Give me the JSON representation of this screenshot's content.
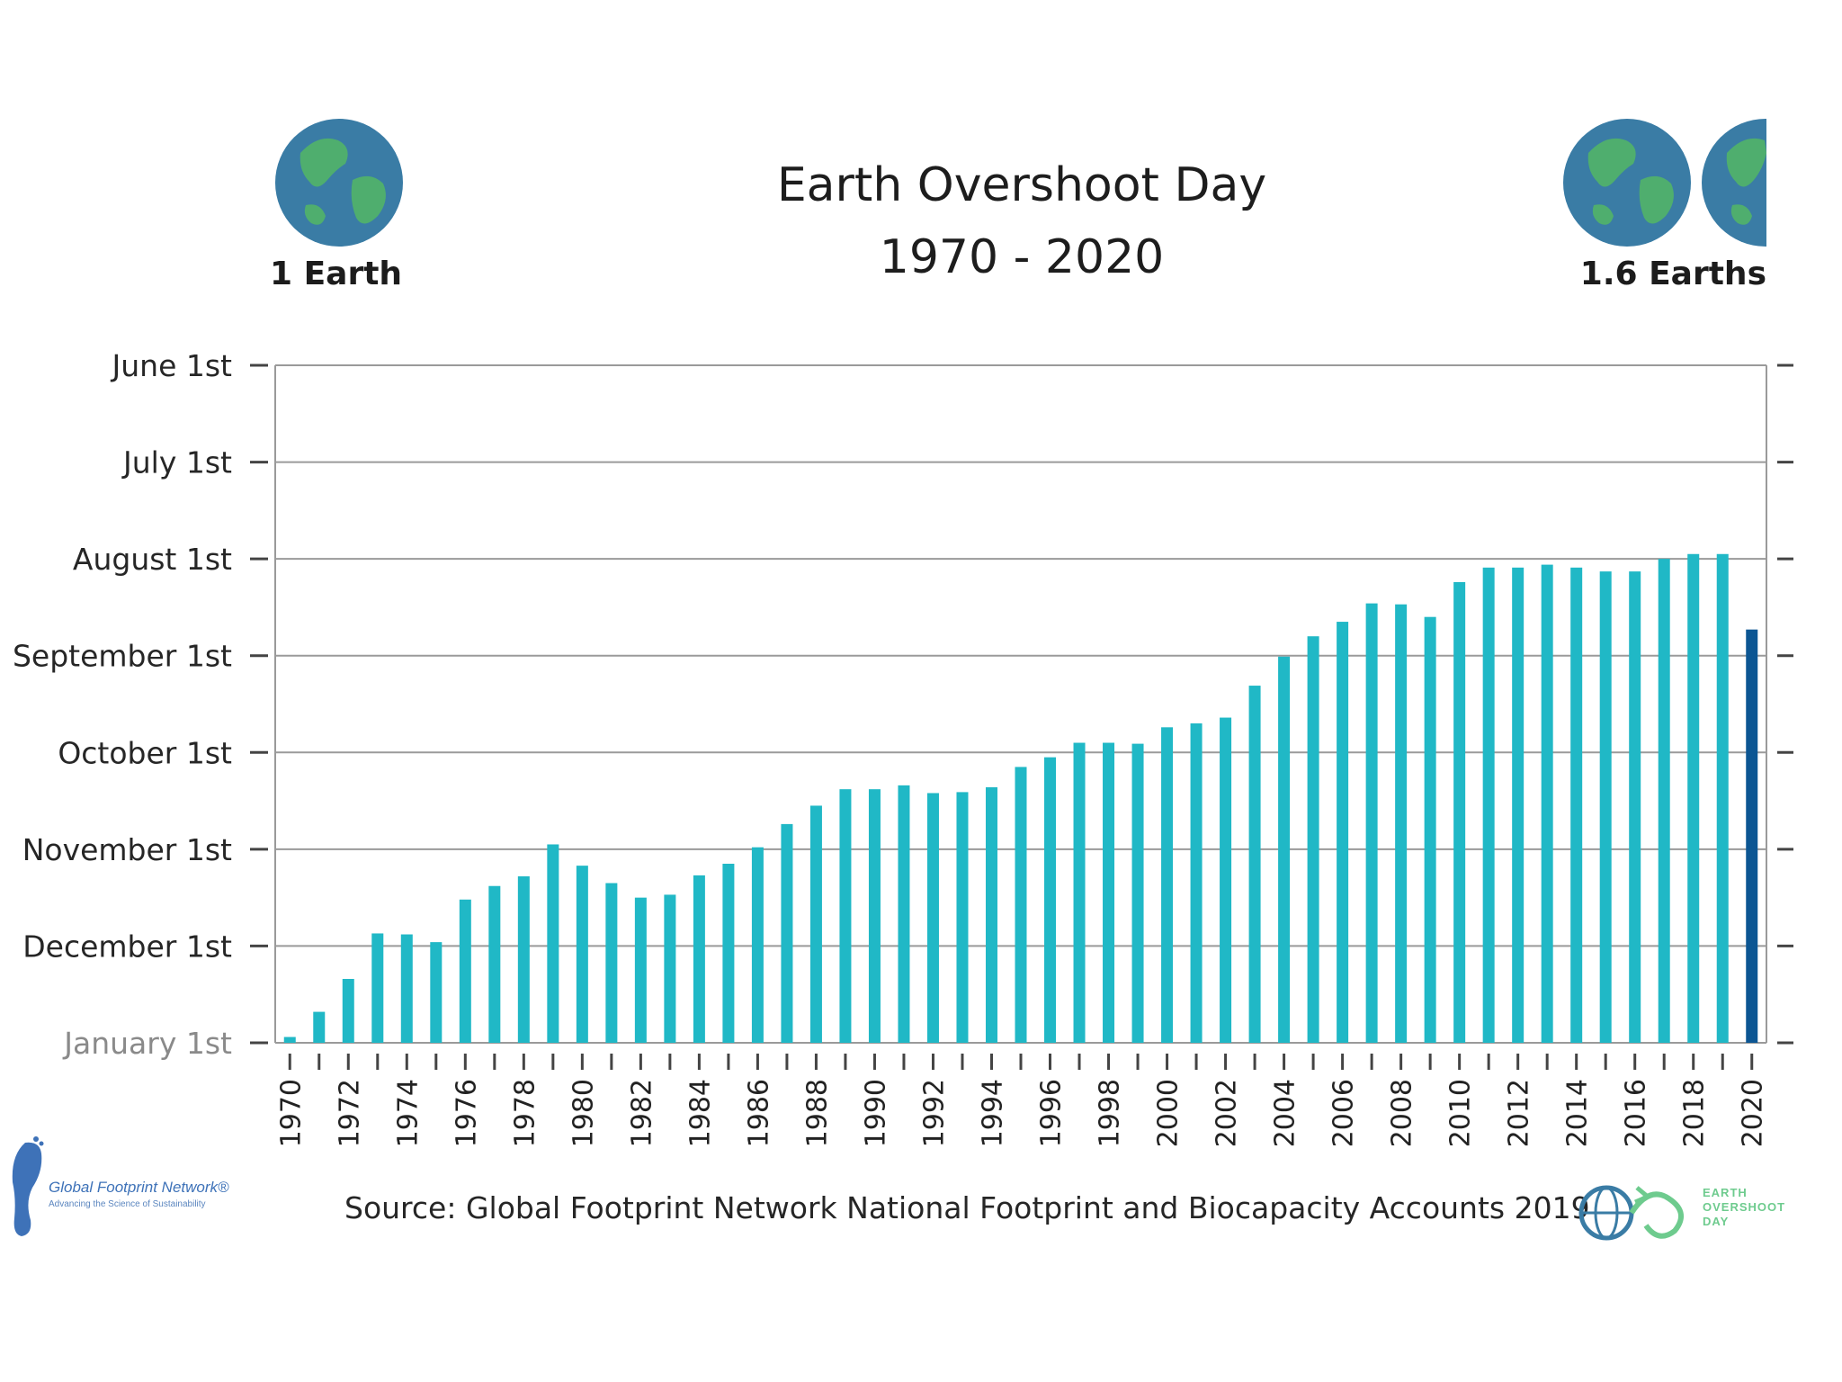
{
  "header": {
    "title": "Earth Overshoot Day",
    "subtitle": "1970 - 2020",
    "left_label": "1 Earth",
    "right_label": "1.6 Earths"
  },
  "footer": {
    "source": "Source: Global Footprint Network National Footprint and Biocapacity Accounts 2019",
    "left_logo_name": "Global Footprint Network®",
    "left_logo_tagline": "Advancing the Science of Sustainability",
    "right_logo_text": "EARTH\nOVERSHOOT\nDAY"
  },
  "colors": {
    "bar": "#20b8c6",
    "bar_highlight": "#0c5693",
    "grid": "#9a9a9a",
    "ocean": "#3a7ca5",
    "land": "#4fae6e"
  },
  "chart_data": {
    "type": "bar",
    "title": "Earth Overshoot Day",
    "subtitle": "1970 - 2020",
    "xlabel": "",
    "ylabel": "",
    "y_unit": "months before January 1st (reverse time axis)",
    "ylim": [
      0,
      7
    ],
    "y_ticks": [
      {
        "value": 0,
        "label": "January 1st"
      },
      {
        "value": 1,
        "label": "December 1st"
      },
      {
        "value": 2,
        "label": "November 1st"
      },
      {
        "value": 3,
        "label": "October 1st"
      },
      {
        "value": 4,
        "label": "September 1st"
      },
      {
        "value": 5,
        "label": "August 1st"
      },
      {
        "value": 6,
        "label": "July 1st"
      },
      {
        "value": 7,
        "label": "June 1st"
      }
    ],
    "x_tick_labels": [
      "1970",
      "1972",
      "1974",
      "1976",
      "1978",
      "1980",
      "1982",
      "1984",
      "1986",
      "1988",
      "1990",
      "1992",
      "1994",
      "1996",
      "1998",
      "2000",
      "2002",
      "2004",
      "2006",
      "2008",
      "2010",
      "2012",
      "2014",
      "2016",
      "2018",
      "2020"
    ],
    "categories": [
      "1970",
      "1971",
      "1972",
      "1973",
      "1974",
      "1975",
      "1976",
      "1977",
      "1978",
      "1979",
      "1980",
      "1981",
      "1982",
      "1983",
      "1984",
      "1985",
      "1986",
      "1987",
      "1988",
      "1989",
      "1990",
      "1991",
      "1992",
      "1993",
      "1994",
      "1995",
      "1996",
      "1997",
      "1998",
      "1999",
      "2000",
      "2001",
      "2002",
      "2003",
      "2004",
      "2005",
      "2006",
      "2007",
      "2008",
      "2009",
      "2010",
      "2011",
      "2012",
      "2013",
      "2014",
      "2015",
      "2016",
      "2017",
      "2018",
      "2019",
      "2020"
    ],
    "values": [
      0.06,
      0.32,
      0.66,
      1.13,
      1.12,
      1.04,
      1.48,
      1.62,
      1.72,
      2.05,
      1.83,
      1.65,
      1.5,
      1.53,
      1.73,
      1.85,
      2.02,
      2.26,
      2.45,
      2.62,
      2.62,
      2.66,
      2.58,
      2.59,
      2.64,
      2.85,
      2.95,
      3.1,
      3.1,
      3.09,
      3.26,
      3.3,
      3.36,
      3.69,
      3.99,
      4.2,
      4.35,
      4.54,
      4.53,
      4.4,
      4.76,
      4.91,
      4.91,
      4.94,
      4.91,
      4.87,
      4.87,
      5.0,
      5.05,
      5.05,
      4.27
    ],
    "highlight_category": "2020",
    "grid": true,
    "legend": "none"
  }
}
